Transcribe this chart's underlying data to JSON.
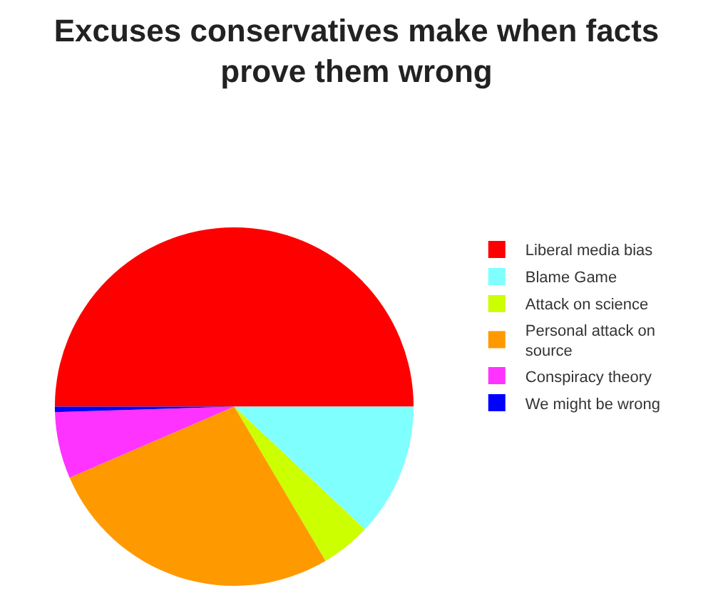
{
  "chart_data": {
    "type": "pie",
    "title": "Excuses conservatives make when facts prove them wrong",
    "categories": [
      "Liberal media bias",
      "Blame Game",
      "Attack on science",
      "Personal attack on source",
      "Conspiracy theory",
      "We might be wrong"
    ],
    "values": [
      50,
      12,
      4.5,
      27,
      6,
      0.5
    ],
    "colors": [
      "#ff0000",
      "#80ffff",
      "#ccff00",
      "#ff9900",
      "#ff33ff",
      "#0000ff"
    ],
    "legend": "right"
  }
}
